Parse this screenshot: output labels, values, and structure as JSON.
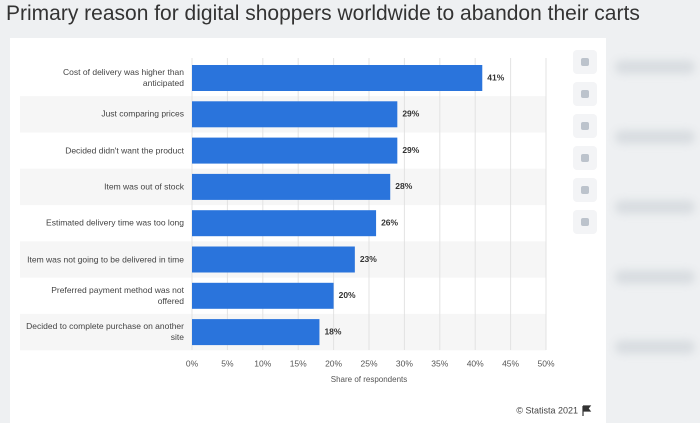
{
  "chart_data": {
    "type": "bar",
    "orientation": "horizontal",
    "title": "Primary reason for digital shoppers worldwide to abandon their carts",
    "categories": [
      "Cost of delivery was higher than anticipated",
      "Just comparing prices",
      "Decided didn't want the product",
      "Item was out of stock",
      "Estimated delivery time was too long",
      "Item was not going to be delivered in time",
      "Preferred payment method was not offered",
      "Decided to complete purchase on another site"
    ],
    "values": [
      41,
      29,
      29,
      28,
      26,
      23,
      20,
      18
    ],
    "value_labels": [
      "41%",
      "29%",
      "29%",
      "28%",
      "26%",
      "23%",
      "20%",
      "18%"
    ],
    "color": "#2a74dc",
    "xlabel": "Share of respondents",
    "xlim": [
      0,
      50
    ],
    "xticks": [
      {
        "value": 0,
        "label": "0%"
      },
      {
        "value": 5,
        "label": "5%"
      },
      {
        "value": 10,
        "label": "10%"
      },
      {
        "value": 15,
        "label": "15%"
      },
      {
        "value": 20,
        "label": "20%"
      },
      {
        "value": 25,
        "label": "25%"
      },
      {
        "value": 30,
        "label": "30%"
      },
      {
        "value": 35,
        "label": "35%"
      },
      {
        "value": 40,
        "label": "40%"
      },
      {
        "value": 45,
        "label": "45%"
      },
      {
        "value": 50,
        "label": "50%"
      }
    ],
    "grid": true,
    "source": "© Statista 2021"
  }
}
